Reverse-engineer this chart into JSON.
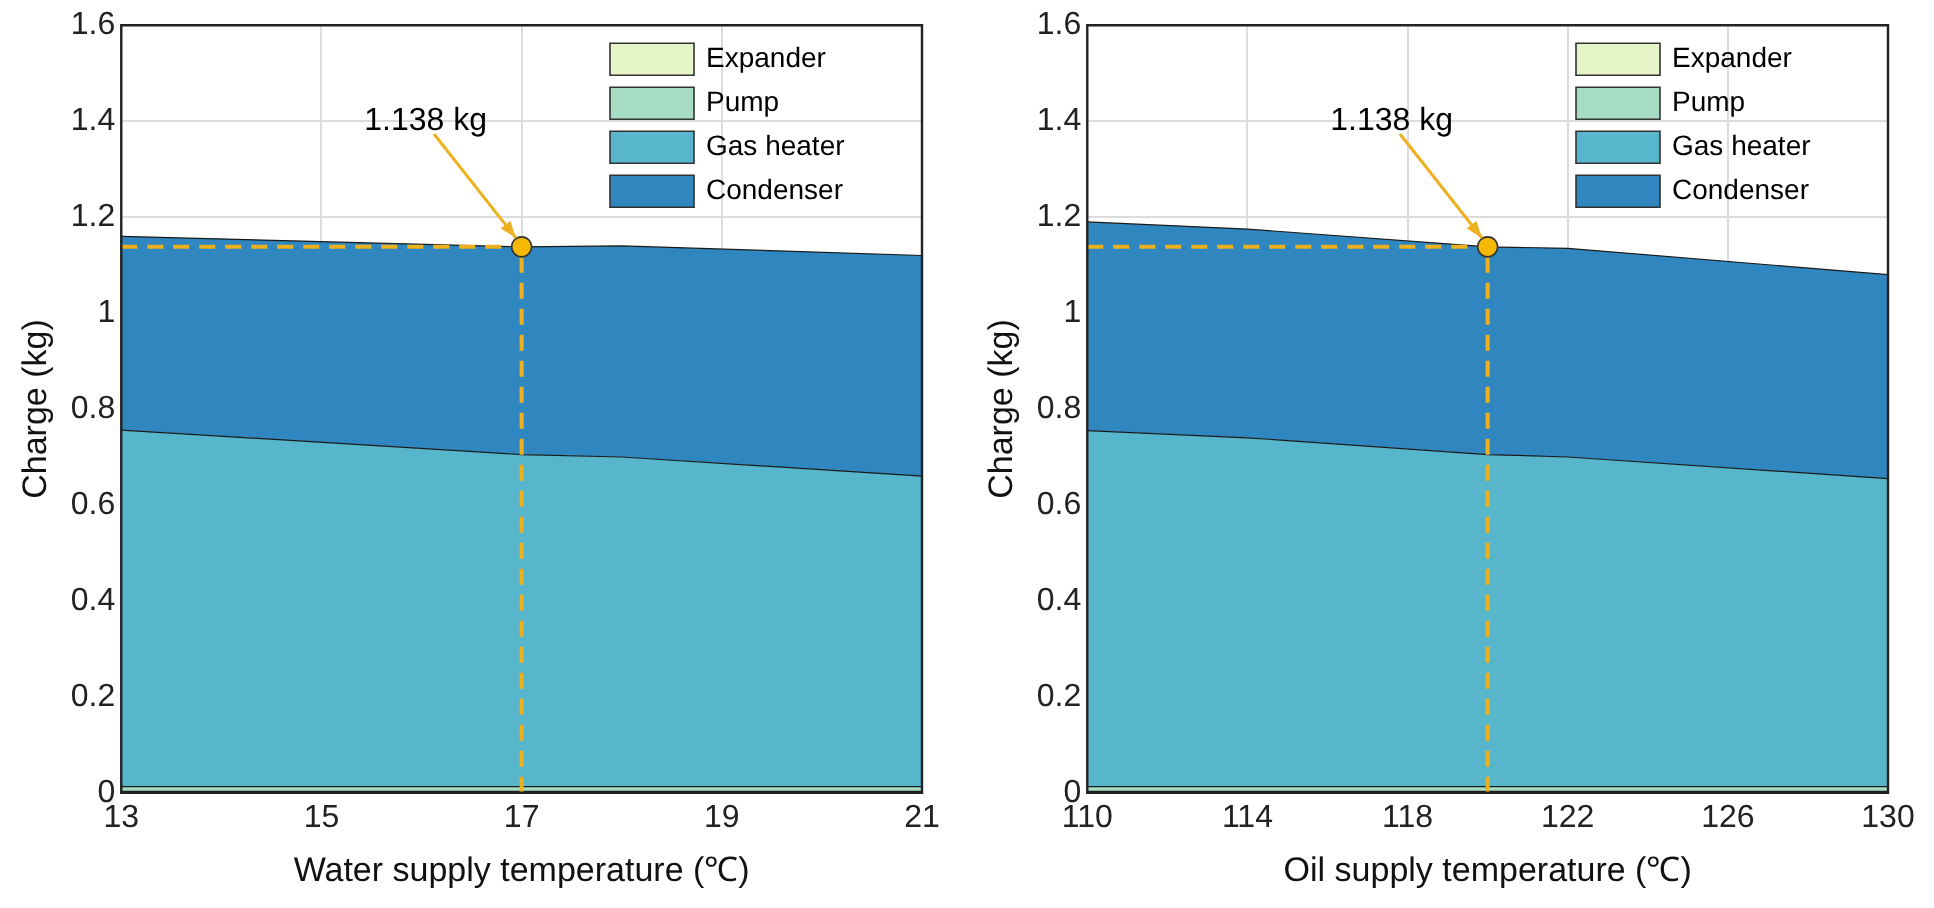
{
  "chart_data": [
    {
      "type": "area",
      "stacked": true,
      "xlabel": "Water supply temperature (℃)",
      "ylabel": "Charge (kg)",
      "x": [
        13,
        17,
        18,
        21
      ],
      "xlim": [
        13,
        21
      ],
      "xticks": [
        13,
        15,
        17,
        19,
        21
      ],
      "ylim": [
        0,
        1.6
      ],
      "yticks": [
        0,
        0.2,
        0.4,
        0.6,
        0.8,
        1,
        1.2,
        1.4,
        1.6
      ],
      "grid": true,
      "legend": "top right",
      "series": [
        {
          "name": "Expander",
          "color": "#e5f5c8",
          "values": [
            0.003,
            0.003,
            0.003,
            0.003
          ]
        },
        {
          "name": "Pump",
          "color": "#a6dcc3",
          "values": [
            0.01,
            0.01,
            0.01,
            0.01
          ]
        },
        {
          "name": "Gas heater",
          "color": "#58b6cc",
          "values": [
            0.743,
            0.692,
            0.687,
            0.647
          ]
        },
        {
          "name": "Condenser",
          "color": "#3087c0",
          "values": [
            0.404,
            0.433,
            0.44,
            0.46
          ]
        }
      ],
      "ref_lines": [
        {
          "axis": "x",
          "value": 17,
          "color": "#edb120",
          "line_style": "dashed"
        },
        {
          "axis": "y",
          "value": 1.138,
          "color": "#edb120",
          "line_style": "dashed"
        }
      ],
      "annotations": [
        {
          "text": "1.138 kg",
          "x": 17,
          "y": 1.138
        }
      ]
    },
    {
      "type": "area",
      "stacked": true,
      "xlabel": "Oil supply temperature (℃)",
      "ylabel": "Charge (kg)",
      "x": [
        110,
        114,
        120,
        122,
        130
      ],
      "xlim": [
        110,
        130
      ],
      "xticks": [
        110,
        114,
        118,
        122,
        126,
        130
      ],
      "ylim": [
        0,
        1.6
      ],
      "yticks": [
        0,
        0.2,
        0.4,
        0.6,
        0.8,
        1,
        1.2,
        1.4,
        1.6
      ],
      "grid": true,
      "legend": "top right",
      "series": [
        {
          "name": "Expander",
          "color": "#e5f5c8",
          "values": [
            0.003,
            0.003,
            0.003,
            0.003,
            0.003
          ]
        },
        {
          "name": "Pump",
          "color": "#a6dcc3",
          "values": [
            0.01,
            0.01,
            0.01,
            0.01,
            0.01
          ]
        },
        {
          "name": "Gas heater",
          "color": "#58b6cc",
          "values": [
            0.742,
            0.727,
            0.692,
            0.687,
            0.642
          ]
        },
        {
          "name": "Condenser",
          "color": "#3087c0",
          "values": [
            0.435,
            0.435,
            0.433,
            0.435,
            0.425
          ]
        }
      ],
      "ref_lines": [
        {
          "axis": "x",
          "value": 120,
          "color": "#edb120",
          "line_style": "dashed"
        },
        {
          "axis": "y",
          "value": 1.138,
          "color": "#edb120",
          "line_style": "dashed"
        }
      ],
      "annotations": [
        {
          "text": "1.138 kg",
          "x": 120,
          "y": 1.138
        }
      ]
    }
  ]
}
